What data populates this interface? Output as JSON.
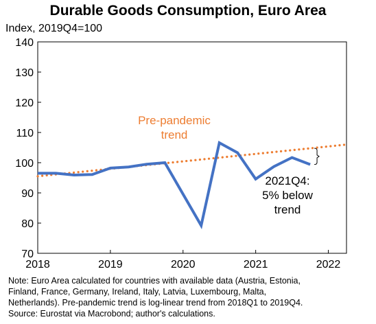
{
  "chart_data": {
    "type": "line",
    "title": "Durable Goods Consumption, Euro Area",
    "ylabel": "Index, 2019Q4=100",
    "ylim": [
      70,
      140
    ],
    "yticks": [
      70,
      80,
      90,
      100,
      110,
      120,
      130,
      140
    ],
    "xlim": [
      2018.0,
      2022.25
    ],
    "xticks": [
      "2018",
      "2019",
      "2020",
      "2021",
      "2022"
    ],
    "xtick_values": [
      2018,
      2019,
      2020,
      2021,
      2022
    ],
    "grid": false,
    "series": [
      {
        "color": "#4472C4",
        "style": "solid",
        "x": [
          "2018Q1",
          "2018Q2",
          "2018Q3",
          "2018Q4",
          "2019Q1",
          "2019Q2",
          "2019Q3",
          "2019Q4",
          "2020Q1",
          "2020Q2",
          "2020Q3",
          "2020Q4",
          "2021Q1",
          "2021Q2",
          "2021Q3",
          "2021Q4"
        ],
        "values": [
          96.5,
          96.5,
          95.9,
          96.1,
          98.2,
          98.6,
          99.5,
          100.0,
          null,
          79.2,
          106.6,
          103.3,
          94.6,
          98.7,
          101.7,
          99.4
        ]
      },
      {
        "name": "Pre-pandemic trend",
        "color": "#ED7D31",
        "style": "dotted",
        "x_start": "2018Q1",
        "x_end": "2022Q2",
        "start_value": 95.5,
        "end_value": 106.0
      }
    ],
    "annotations": [
      {
        "text_lines": [
          "Pre-pandemic",
          "trend"
        ],
        "color": "#ED7D31"
      },
      {
        "text_lines": [
          "2021Q4:",
          "5% below",
          "trend"
        ],
        "color": "#000000"
      }
    ]
  },
  "footer": {
    "note_lines": [
      "Note: Euro Area calculated for countries with available data (Austria, Estonia,",
      "Finland, France, Germany, Ireland, Italy, Latvia, Luxembourg, Malta,",
      "Netherlands).  Pre-pandemic trend is log-linear trend from 2018Q1 to 2019Q4.",
      "Source: Eurostat via Macrobond; author's calculations."
    ]
  }
}
